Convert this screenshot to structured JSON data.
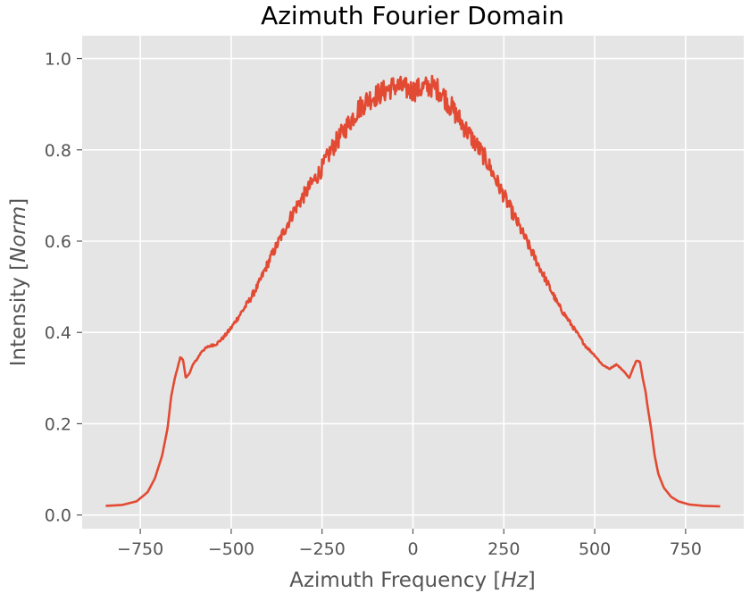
{
  "chart_data": {
    "type": "line",
    "title": "Azimuth Fourier Domain",
    "xlabel": {
      "prefix": "Azimuth Frequency [",
      "italic": "Hz",
      "suffix": "]"
    },
    "ylabel": {
      "prefix": "Intensity [",
      "italic": "Norm",
      "suffix": "]"
    },
    "xlim": [
      -910,
      910
    ],
    "ylim": [
      -0.03,
      1.05
    ],
    "xticks": [
      -750,
      -500,
      -250,
      0,
      250,
      500,
      750
    ],
    "xtick_labels": [
      "−750",
      "−500",
      "−250",
      "0",
      "250",
      "500",
      "750"
    ],
    "yticks": [
      0.0,
      0.2,
      0.4,
      0.6,
      0.8,
      1.0
    ],
    "ytick_labels": [
      "0.0",
      "0.2",
      "0.4",
      "0.6",
      "0.8",
      "1.0"
    ],
    "grid": true,
    "style": "ggplot",
    "series": [
      {
        "color": "#E24A33",
        "x": [
          -845,
          -800,
          -760,
          -730,
          -710,
          -690,
          -675,
          -665,
          -655,
          -645,
          -640,
          -632,
          -625,
          -615,
          -605,
          -595,
          -580,
          -560,
          -540,
          -520,
          -500,
          -475,
          -450,
          -425,
          -400,
          -375,
          -350,
          -325,
          -300,
          -275,
          -250,
          -225,
          -200,
          -175,
          -150,
          -125,
          -100,
          -75,
          -50,
          -25,
          0,
          25,
          50,
          75,
          100,
          125,
          150,
          175,
          200,
          225,
          250,
          275,
          300,
          325,
          350,
          375,
          400,
          425,
          450,
          475,
          500,
          520,
          540,
          560,
          580,
          595,
          605,
          615,
          625,
          632,
          640,
          645,
          655,
          665,
          675,
          690,
          710,
          730,
          760,
          800,
          845
        ],
        "y": [
          0.02,
          0.022,
          0.03,
          0.05,
          0.08,
          0.13,
          0.19,
          0.26,
          0.3,
          0.33,
          0.345,
          0.34,
          0.3,
          0.31,
          0.33,
          0.34,
          0.36,
          0.37,
          0.375,
          0.39,
          0.41,
          0.44,
          0.47,
          0.505,
          0.55,
          0.59,
          0.63,
          0.67,
          0.7,
          0.73,
          0.76,
          0.8,
          0.83,
          0.86,
          0.89,
          0.91,
          0.92,
          0.93,
          0.94,
          0.935,
          0.93,
          0.935,
          0.94,
          0.93,
          0.9,
          0.87,
          0.84,
          0.81,
          0.78,
          0.74,
          0.7,
          0.66,
          0.62,
          0.58,
          0.54,
          0.5,
          0.46,
          0.43,
          0.4,
          0.37,
          0.35,
          0.33,
          0.32,
          0.33,
          0.315,
          0.3,
          0.32,
          0.34,
          0.335,
          0.3,
          0.27,
          0.24,
          0.19,
          0.13,
          0.09,
          0.06,
          0.04,
          0.03,
          0.023,
          0.02,
          0.019
        ],
        "noise_amplitude": 0.025
      }
    ]
  }
}
